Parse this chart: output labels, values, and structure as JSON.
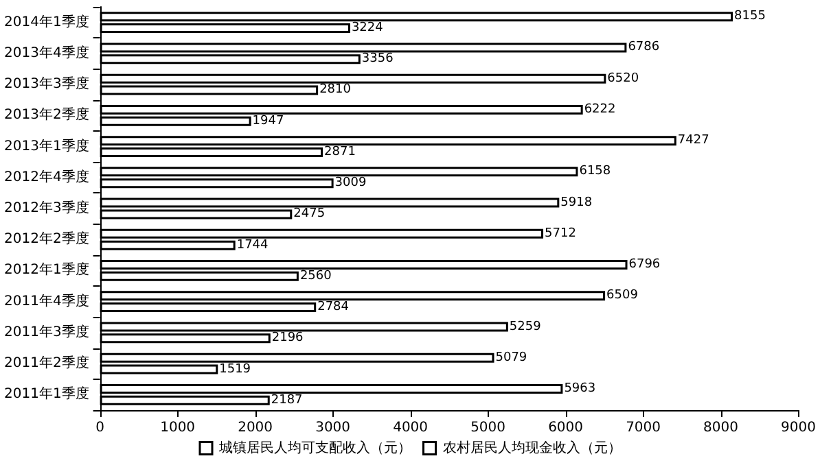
{
  "chart_data": {
    "type": "bar",
    "orientation": "horizontal",
    "categories": [
      "2014年1季度",
      "2013年4季度",
      "2013年3季度",
      "2013年2季度",
      "2013年1季度",
      "2012年4季度",
      "2012年3季度",
      "2012年2季度",
      "2012年1季度",
      "2011年4季度",
      "2011年3季度",
      "2011年2季度",
      "2011年1季度"
    ],
    "series": [
      {
        "name": "城镇居民人均可支配收入（元）",
        "color": "#ffffff",
        "values": [
          8155,
          6786,
          6520,
          6222,
          7427,
          6158,
          5918,
          5712,
          6796,
          6509,
          5259,
          5079,
          5963
        ]
      },
      {
        "name": "农村居民人均现金收入（元）",
        "color": "#ffffff",
        "values": [
          3224,
          3356,
          2810,
          1947,
          2871,
          3009,
          2475,
          1744,
          2560,
          2784,
          2196,
          1519,
          2187
        ]
      }
    ],
    "xlim": [
      0,
      9000
    ],
    "xticks": [
      0,
      1000,
      2000,
      3000,
      4000,
      5000,
      6000,
      7000,
      8000,
      9000
    ],
    "data_labels": true,
    "legend": "bottom",
    "grid": false
  }
}
